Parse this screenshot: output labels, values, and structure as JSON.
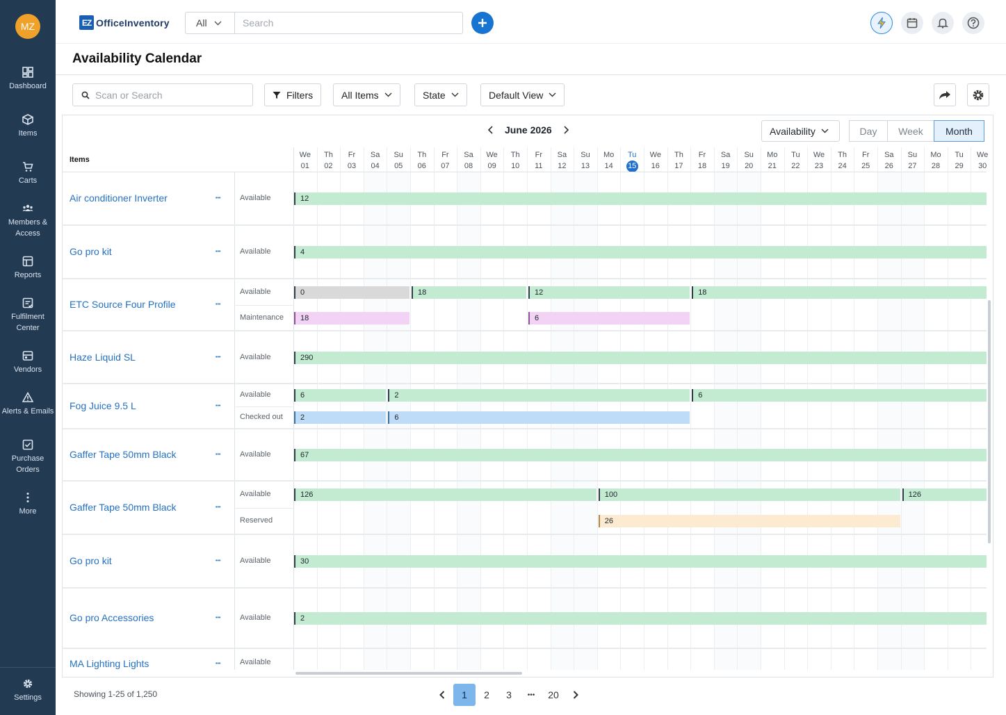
{
  "user": {
    "initials": "MZ"
  },
  "sidebar": {
    "items": [
      {
        "label": "Dashboard",
        "icon": "dashboard-icon"
      },
      {
        "label": "Items",
        "icon": "box-icon"
      },
      {
        "label": "Carts",
        "icon": "cart-icon"
      },
      {
        "label": "Members & Access",
        "icon": "members-icon"
      },
      {
        "label": "Reports",
        "icon": "reports-icon"
      },
      {
        "label": "Fulfilment Center",
        "icon": "fulfilment-icon"
      },
      {
        "label": "Vendors",
        "icon": "vendors-icon"
      },
      {
        "label": "Alerts & Emails",
        "icon": "alert-icon"
      },
      {
        "label": "Purchase Orders",
        "icon": "purchase-orders-icon"
      },
      {
        "label": "More",
        "icon": "more-icon"
      }
    ],
    "settings_label": "Settings"
  },
  "topbar": {
    "logo_badge": "EZ",
    "logo_text": "OfficeInventory",
    "scope": "All",
    "search_placeholder": "Search"
  },
  "page": {
    "title": "Availability Calendar"
  },
  "toolbar": {
    "search_placeholder": "Scan or Search",
    "filters_label": "Filters",
    "all_items_label": "All Items",
    "state_label": "State",
    "view_label": "Default View"
  },
  "calendar": {
    "month_label": "June 2026",
    "mode_label": "Availability",
    "views": [
      "Day",
      "Week",
      "Month"
    ],
    "active_view": "Month",
    "items_header": "Items",
    "today": 15,
    "days": [
      [
        "We",
        "01"
      ],
      [
        "Th",
        "02"
      ],
      [
        "Fr",
        "03"
      ],
      [
        "Sa",
        "04"
      ],
      [
        "Su",
        "05"
      ],
      [
        "Th",
        "06"
      ],
      [
        "Fr",
        "07"
      ],
      [
        "Sa",
        "08"
      ],
      [
        "We",
        "09"
      ],
      [
        "Th",
        "10"
      ],
      [
        "Fr",
        "11"
      ],
      [
        "Sa",
        "12"
      ],
      [
        "Su",
        "13"
      ],
      [
        "Mo",
        "14"
      ],
      [
        "Tu",
        "15"
      ],
      [
        "We",
        "16"
      ],
      [
        "Th",
        "17"
      ],
      [
        "Fr",
        "18"
      ],
      [
        "Sa",
        "19"
      ],
      [
        "Su",
        "20"
      ],
      [
        "Mo",
        "21"
      ],
      [
        "Tu",
        "22"
      ],
      [
        "We",
        "23"
      ],
      [
        "Th",
        "24"
      ],
      [
        "Fr",
        "25"
      ],
      [
        "Sa",
        "26"
      ],
      [
        "Su",
        "27"
      ],
      [
        "Mo",
        "28"
      ],
      [
        "Tu",
        "29"
      ],
      [
        "We",
        "30"
      ]
    ],
    "rows": [
      {
        "name": "Air conditioner Inverter",
        "states": [
          {
            "label": "Available",
            "bars": [
              {
                "start": 1,
                "end": 30,
                "value": "12",
                "kind": "avail"
              }
            ]
          }
        ]
      },
      {
        "name": "Go pro kit",
        "states": [
          {
            "label": "Available",
            "bars": [
              {
                "start": 1,
                "end": 30,
                "value": "4",
                "kind": "avail"
              }
            ]
          }
        ]
      },
      {
        "name": "ETC Source Four Profile",
        "states": [
          {
            "label": "Available",
            "bars": [
              {
                "start": 1,
                "end": 5,
                "value": "0",
                "kind": "zero"
              },
              {
                "start": 6,
                "end": 10,
                "value": "18",
                "kind": "avail"
              },
              {
                "start": 11,
                "end": 17,
                "value": "12",
                "kind": "avail"
              },
              {
                "start": 18,
                "end": 30,
                "value": "18",
                "kind": "avail"
              }
            ]
          },
          {
            "label": "Maintenance",
            "bars": [
              {
                "start": 1,
                "end": 5,
                "value": "18",
                "kind": "maint"
              },
              {
                "start": 11,
                "end": 17,
                "value": "6",
                "kind": "maint"
              }
            ]
          }
        ]
      },
      {
        "name": "Haze Liquid SL",
        "states": [
          {
            "label": "Available",
            "bars": [
              {
                "start": 1,
                "end": 30,
                "value": "290",
                "kind": "avail"
              }
            ]
          }
        ]
      },
      {
        "name": "Fog Juice 9.5 L",
        "states": [
          {
            "label": "Available",
            "bars": [
              {
                "start": 1,
                "end": 4,
                "value": "6",
                "kind": "avail"
              },
              {
                "start": 5,
                "end": 17,
                "value": "2",
                "kind": "avail"
              },
              {
                "start": 18,
                "end": 30,
                "value": "6",
                "kind": "avail"
              }
            ]
          },
          {
            "label": "Checked out",
            "bars": [
              {
                "start": 1,
                "end": 4,
                "value": "2",
                "kind": "out"
              },
              {
                "start": 5,
                "end": 17,
                "value": "6",
                "kind": "out"
              }
            ]
          }
        ]
      },
      {
        "name": "Gaffer Tape 50mm Black",
        "states": [
          {
            "label": "Available",
            "bars": [
              {
                "start": 1,
                "end": 30,
                "value": "67",
                "kind": "avail"
              }
            ]
          }
        ]
      },
      {
        "name": "Gaffer Tape 50mm Black",
        "states": [
          {
            "label": "Available",
            "bars": [
              {
                "start": 1,
                "end": 13,
                "value": "126",
                "kind": "avail"
              },
              {
                "start": 14,
                "end": 26,
                "value": "100",
                "kind": "avail"
              },
              {
                "start": 27,
                "end": 30,
                "value": "126",
                "kind": "avail"
              }
            ]
          },
          {
            "label": "Reserved",
            "bars": [
              {
                "start": 14,
                "end": 26,
                "value": "26",
                "kind": "res"
              }
            ]
          }
        ]
      },
      {
        "name": "Go pro kit",
        "states": [
          {
            "label": "Available",
            "bars": [
              {
                "start": 1,
                "end": 30,
                "value": "30",
                "kind": "avail"
              }
            ]
          }
        ]
      },
      {
        "name": "Go pro Accessories",
        "states": [
          {
            "label": "Available",
            "bars": [
              {
                "start": 1,
                "end": 30,
                "value": "2",
                "kind": "avail"
              }
            ]
          }
        ]
      },
      {
        "name": "MA Lighting Lights",
        "states": [
          {
            "label": "Available",
            "bars": []
          }
        ]
      }
    ]
  },
  "pagination": {
    "summary": "Showing 1-25 of 1,250",
    "pages": [
      "1",
      "2",
      "3",
      "•••",
      "20"
    ],
    "active": "1"
  },
  "colors": {
    "sidebar_bg": "#223a52",
    "accent": "#1774d1",
    "available": "#c2ebd1",
    "maintenance": "#f2d3f6",
    "checked_out": "#bedcf7",
    "reserved": "#fcebd1"
  }
}
